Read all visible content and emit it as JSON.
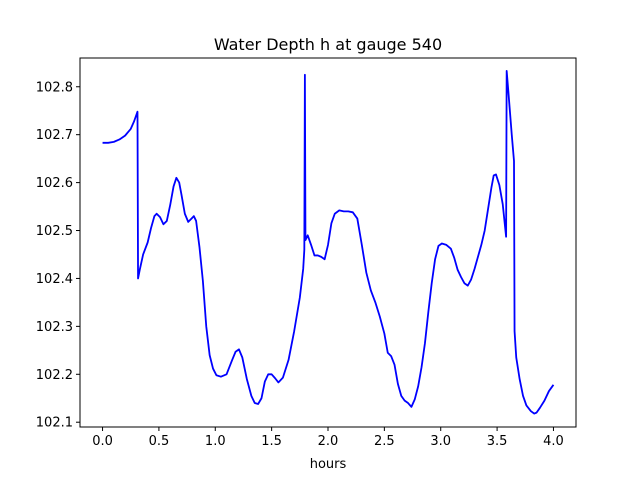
{
  "chart_data": {
    "type": "line",
    "title": "Water Depth h at gauge 540",
    "xlabel": "hours",
    "ylabel": "",
    "xlim": [
      -0.2,
      4.2
    ],
    "ylim": [
      102.09,
      102.86
    ],
    "xticks": [
      0.0,
      0.5,
      1.0,
      1.5,
      2.0,
      2.5,
      3.0,
      3.5,
      4.0
    ],
    "xtick_labels": [
      "0.0",
      "0.5",
      "1.0",
      "1.5",
      "2.0",
      "2.5",
      "3.0",
      "3.5",
      "4.0"
    ],
    "yticks": [
      102.1,
      102.2,
      102.3,
      102.4,
      102.5,
      102.6,
      102.7,
      102.8
    ],
    "ytick_labels": [
      "102.1",
      "102.2",
      "102.3",
      "102.4",
      "102.5",
      "102.6",
      "102.7",
      "102.8"
    ],
    "grid": false,
    "series": [
      {
        "name": "",
        "color": "#0000ff",
        "x": [
          0.0,
          0.05,
          0.1,
          0.15,
          0.2,
          0.25,
          0.28,
          0.31,
          0.315,
          0.33,
          0.36,
          0.4,
          0.43,
          0.46,
          0.48,
          0.51,
          0.54,
          0.57,
          0.6,
          0.63,
          0.655,
          0.68,
          0.7,
          0.73,
          0.76,
          0.79,
          0.81,
          0.83,
          0.86,
          0.89,
          0.92,
          0.95,
          0.98,
          1.01,
          1.05,
          1.1,
          1.15,
          1.18,
          1.21,
          1.24,
          1.28,
          1.32,
          1.35,
          1.38,
          1.41,
          1.44,
          1.47,
          1.5,
          1.53,
          1.56,
          1.6,
          1.65,
          1.7,
          1.75,
          1.78,
          1.79,
          1.795,
          1.8,
          1.82,
          1.85,
          1.88,
          1.91,
          1.94,
          1.97,
          2.0,
          2.03,
          2.06,
          2.1,
          2.14,
          2.18,
          2.22,
          2.26,
          2.3,
          2.34,
          2.38,
          2.42,
          2.46,
          2.5,
          2.53,
          2.56,
          2.59,
          2.62,
          2.65,
          2.68,
          2.71,
          2.74,
          2.77,
          2.8,
          2.83,
          2.86,
          2.89,
          2.92,
          2.95,
          2.98,
          3.01,
          3.05,
          3.09,
          3.12,
          3.15,
          3.18,
          3.21,
          3.24,
          3.27,
          3.3,
          3.33,
          3.36,
          3.39,
          3.42,
          3.45,
          3.47,
          3.49,
          3.52,
          3.55,
          3.58,
          3.585,
          3.6,
          3.63,
          3.65,
          3.655,
          3.67,
          3.7,
          3.73,
          3.76,
          3.8,
          3.83,
          3.85,
          3.88,
          3.92,
          3.96,
          4.0
        ],
        "y": [
          102.683,
          102.683,
          102.685,
          102.69,
          102.698,
          102.712,
          102.728,
          102.748,
          102.4,
          102.418,
          102.45,
          102.475,
          102.505,
          102.53,
          102.535,
          102.528,
          102.513,
          102.52,
          102.553,
          102.592,
          102.61,
          102.6,
          102.575,
          102.535,
          102.518,
          102.525,
          102.53,
          102.52,
          102.465,
          102.395,
          102.3,
          102.24,
          102.212,
          102.198,
          102.195,
          102.2,
          102.23,
          102.247,
          102.252,
          102.235,
          102.19,
          102.155,
          102.14,
          102.138,
          102.15,
          102.185,
          102.2,
          102.2,
          102.192,
          102.183,
          102.193,
          102.23,
          102.29,
          102.36,
          102.42,
          102.46,
          102.825,
          102.48,
          102.49,
          102.47,
          102.448,
          102.448,
          102.445,
          102.44,
          102.47,
          102.515,
          102.535,
          102.542,
          102.54,
          102.54,
          102.538,
          102.525,
          102.47,
          102.412,
          102.375,
          102.35,
          102.32,
          102.285,
          102.245,
          102.238,
          102.22,
          102.18,
          102.155,
          102.145,
          102.14,
          102.132,
          102.148,
          102.175,
          102.215,
          102.265,
          102.33,
          102.39,
          102.44,
          102.468,
          102.473,
          102.47,
          102.462,
          102.443,
          102.418,
          102.403,
          102.39,
          102.385,
          102.398,
          102.42,
          102.445,
          102.47,
          102.5,
          102.545,
          102.59,
          102.615,
          102.617,
          102.595,
          102.555,
          102.487,
          102.833,
          102.79,
          102.7,
          102.645,
          102.29,
          102.235,
          102.19,
          102.155,
          102.135,
          102.123,
          102.118,
          102.12,
          102.13,
          102.145,
          102.165,
          102.178
        ]
      }
    ]
  }
}
